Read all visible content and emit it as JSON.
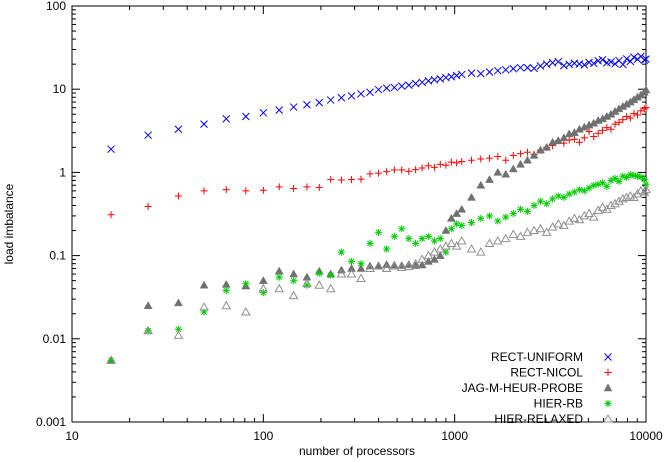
{
  "chart_data": {
    "type": "scatter",
    "xlabel": "number of processors",
    "ylabel": "load imbalance",
    "xscale": "log",
    "yscale": "log",
    "xlim": [
      10,
      10000
    ],
    "ylim": [
      0.001,
      100
    ],
    "xticks": [
      "10",
      "100",
      "1000",
      "10000"
    ],
    "yticks": [
      "0.001",
      "0.01",
      "0.1",
      "1",
      "10",
      "100"
    ],
    "grid": false,
    "legend_position": "bottom-right",
    "series": [
      {
        "name": "RECT-UNIFORM",
        "color": "#0000ff",
        "marker": "x-cross",
        "x": [
          16,
          25,
          36,
          49,
          64,
          81,
          100,
          121,
          144,
          169,
          196,
          225,
          256,
          289,
          324,
          361,
          400,
          441,
          484,
          529,
          576,
          625,
          676,
          729,
          784,
          841,
          900,
          961,
          1024,
          1089,
          1225,
          1369,
          1521,
          1681,
          1849,
          2025,
          2209,
          2401,
          2601,
          2809,
          3025,
          3249,
          3481,
          3721,
          3969,
          4225,
          4489,
          4761,
          5041,
          5329,
          5625,
          5929,
          6241,
          6561,
          6889,
          7225,
          7569,
          7921,
          8281,
          8649,
          9025,
          9409,
          9801,
          10000
        ],
        "y": [
          1.9,
          2.8,
          3.3,
          3.8,
          4.4,
          4.7,
          5.2,
          5.6,
          6.1,
          6.5,
          6.9,
          7.4,
          7.9,
          8.3,
          8.8,
          9.2,
          9.9,
          10.3,
          10.5,
          10.9,
          11.2,
          11.7,
          12.1,
          12.6,
          13,
          13.3,
          13.8,
          14.1,
          14.6,
          15,
          15.6,
          15.4,
          16.1,
          16.7,
          17.1,
          17.6,
          18.2,
          18.1,
          17.8,
          19,
          20,
          20.8,
          21.4,
          19.2,
          19.9,
          20.5,
          20.1,
          19.6,
          21,
          20.4,
          22,
          22.6,
          20.8,
          21.3,
          20.2,
          22.1,
          19.8,
          23.1,
          21.6,
          24.2,
          22.9,
          24.8,
          22.4,
          23
        ]
      },
      {
        "name": "RECT-NICOL",
        "color": "#ff0000",
        "marker": "plus",
        "x": [
          16,
          25,
          36,
          49,
          64,
          81,
          100,
          121,
          144,
          169,
          196,
          225,
          256,
          289,
          324,
          361,
          400,
          441,
          484,
          529,
          576,
          625,
          676,
          729,
          784,
          841,
          900,
          961,
          1024,
          1089,
          1225,
          1369,
          1521,
          1681,
          1849,
          2025,
          2209,
          2401,
          2601,
          2809,
          3025,
          3249,
          3481,
          3721,
          3969,
          4225,
          4489,
          4761,
          5041,
          5329,
          5625,
          5929,
          6241,
          6561,
          6889,
          7225,
          7569,
          7921,
          8281,
          8649,
          9025,
          9409,
          9801,
          10000
        ],
        "y": [
          0.31,
          0.39,
          0.52,
          0.6,
          0.62,
          0.6,
          0.61,
          0.67,
          0.64,
          0.67,
          0.66,
          0.82,
          0.81,
          0.82,
          0.83,
          0.96,
          0.98,
          1.02,
          1.07,
          1.07,
          1.03,
          1.08,
          1.13,
          1.2,
          1.15,
          1.25,
          1.22,
          1.33,
          1.3,
          1.35,
          1.4,
          1.45,
          1.48,
          1.55,
          1.4,
          1.6,
          1.68,
          1.75,
          1.65,
          1.85,
          2,
          2.1,
          2.4,
          2.25,
          2.45,
          2.5,
          2.3,
          2.6,
          3.1,
          2.7,
          2.95,
          3.2,
          3.45,
          3.3,
          3.8,
          4,
          4.3,
          4.7,
          4.5,
          5.1,
          4.9,
          5.5,
          5.8,
          6
        ]
      },
      {
        "name": "JAG-M-HEUR-PROBE",
        "color": "#707070",
        "marker": "filled-triangle",
        "x": [
          16,
          25,
          36,
          49,
          64,
          81,
          100,
          121,
          144,
          169,
          196,
          225,
          256,
          289,
          324,
          361,
          400,
          441,
          484,
          529,
          576,
          625,
          676,
          729,
          784,
          841,
          900,
          961,
          1024,
          1089,
          1225,
          1369,
          1521,
          1681,
          1849,
          2025,
          2209,
          2401,
          2601,
          2809,
          3025,
          3249,
          3481,
          3721,
          3969,
          4225,
          4489,
          4761,
          5041,
          5329,
          5625,
          5929,
          6241,
          6561,
          6889,
          7225,
          7569,
          7921,
          8281,
          8649,
          9025,
          9409,
          9801,
          10000
        ],
        "y": [
          0.0055,
          0.025,
          0.027,
          0.044,
          0.045,
          0.043,
          0.05,
          0.065,
          0.06,
          0.055,
          0.065,
          0.06,
          0.067,
          0.07,
          0.07,
          0.075,
          0.075,
          0.078,
          0.077,
          0.076,
          0.078,
          0.076,
          0.077,
          0.085,
          0.09,
          0.1,
          0.2,
          0.28,
          0.32,
          0.36,
          0.5,
          0.7,
          0.82,
          1.0,
          0.95,
          1.1,
          1.25,
          1.4,
          1.6,
          1.85,
          2.0,
          2.3,
          2.4,
          2.6,
          2.9,
          3.0,
          3.3,
          3.5,
          3.7,
          3.9,
          4.2,
          4.4,
          4.7,
          5.0,
          5.4,
          5.8,
          6.2,
          6.6,
          7.0,
          7.5,
          8.0,
          8.5,
          9.2,
          9.8
        ]
      },
      {
        "name": "HIER-RB",
        "color": "#00cc00",
        "marker": "asterisk",
        "x": [
          16,
          25,
          36,
          49,
          64,
          81,
          100,
          121,
          144,
          169,
          196,
          225,
          256,
          289,
          324,
          361,
          400,
          441,
          484,
          529,
          576,
          625,
          676,
          729,
          784,
          841,
          900,
          961,
          1024,
          1089,
          1225,
          1369,
          1521,
          1681,
          1849,
          2025,
          2209,
          2401,
          2601,
          2809,
          3025,
          3249,
          3481,
          3721,
          3969,
          4225,
          4489,
          4761,
          5041,
          5329,
          5625,
          5929,
          6241,
          6561,
          6889,
          7225,
          7569,
          7921,
          8281,
          8649,
          9025,
          9409,
          9801,
          10000
        ],
        "y": [
          0.0055,
          0.0125,
          0.013,
          0.021,
          0.038,
          0.046,
          0.036,
          0.055,
          0.05,
          0.044,
          0.061,
          0.058,
          0.11,
          0.085,
          0.08,
          0.14,
          0.19,
          0.12,
          0.17,
          0.21,
          0.16,
          0.14,
          0.16,
          0.17,
          0.15,
          0.16,
          0.11,
          0.21,
          0.24,
          0.23,
          0.25,
          0.28,
          0.3,
          0.26,
          0.29,
          0.32,
          0.36,
          0.34,
          0.4,
          0.45,
          0.42,
          0.48,
          0.52,
          0.5,
          0.55,
          0.58,
          0.62,
          0.6,
          0.65,
          0.7,
          0.72,
          0.75,
          0.68,
          0.8,
          0.85,
          0.78,
          0.9,
          0.87,
          0.94,
          0.92,
          0.9,
          0.88,
          0.82,
          0.72
        ]
      },
      {
        "name": "HIER-RELAXED",
        "color": "#909090",
        "marker": "open-triangle",
        "x": [
          16,
          25,
          36,
          49,
          64,
          81,
          100,
          121,
          144,
          169,
          196,
          225,
          256,
          289,
          324,
          361,
          400,
          441,
          484,
          529,
          576,
          625,
          676,
          729,
          784,
          841,
          900,
          961,
          1024,
          1089,
          1225,
          1369,
          1521,
          1681,
          1849,
          2025,
          2209,
          2401,
          2601,
          2809,
          3025,
          3249,
          3481,
          3721,
          3969,
          4225,
          4489,
          4761,
          5041,
          5329,
          5625,
          5929,
          6241,
          6561,
          6889,
          7225,
          7569,
          7921,
          8281,
          8649,
          9025,
          9409,
          9801,
          10000
        ],
        "y": [
          0.0055,
          0.0125,
          0.011,
          0.024,
          0.025,
          0.021,
          0.04,
          0.04,
          0.033,
          0.046,
          0.044,
          0.04,
          0.06,
          0.06,
          0.053,
          0.07,
          0.075,
          0.07,
          0.075,
          0.072,
          0.074,
          0.08,
          0.09,
          0.1,
          0.11,
          0.12,
          0.13,
          0.14,
          0.13,
          0.15,
          0.12,
          0.11,
          0.14,
          0.15,
          0.16,
          0.18,
          0.17,
          0.19,
          0.2,
          0.21,
          0.19,
          0.22,
          0.24,
          0.23,
          0.26,
          0.28,
          0.27,
          0.3,
          0.32,
          0.29,
          0.35,
          0.38,
          0.36,
          0.4,
          0.42,
          0.45,
          0.48,
          0.5,
          0.52,
          0.5,
          0.55,
          0.6,
          0.58,
          0.62
        ]
      }
    ]
  }
}
